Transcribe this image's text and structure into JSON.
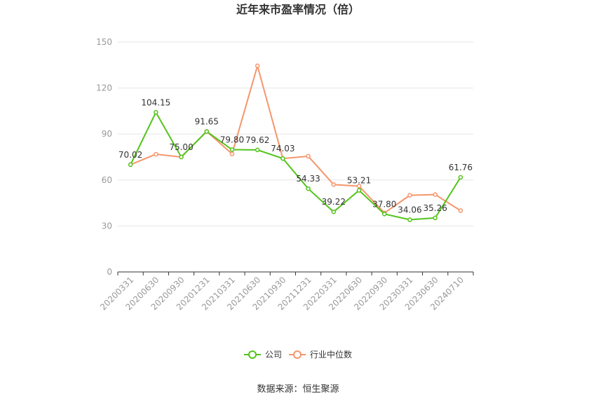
{
  "chart_data": {
    "type": "line",
    "title": "近年来市盈率情况（倍）",
    "categories": [
      "20200331",
      "20200630",
      "20200930",
      "20201231",
      "20210331",
      "20210630",
      "20210930",
      "20211231",
      "20220331",
      "20220630",
      "20220930",
      "20230331",
      "20230630",
      "20240710"
    ],
    "ylim": [
      0,
      150
    ],
    "yticks": [
      0,
      30,
      60,
      90,
      120,
      150
    ],
    "grid": true,
    "legend_position": "bottom",
    "series": [
      {
        "name": "公司",
        "color": "#52c41a",
        "values": [
          70.02,
          104.15,
          75.0,
          91.65,
          79.8,
          79.62,
          74.03,
          54.33,
          39.22,
          53.21,
          37.8,
          34.06,
          35.26,
          61.76
        ],
        "labels": [
          "70.02",
          "104.15",
          "75.00",
          "91.65",
          "79.80",
          "79.62",
          "74.03",
          "54.33",
          "39.22",
          "53.21",
          "37.80",
          "34.06",
          "35.26",
          "61.76"
        ]
      },
      {
        "name": "行业中位数",
        "color": "#f5956c",
        "values": [
          70.0,
          76.8,
          75.0,
          91.7,
          77.0,
          134.5,
          74.0,
          75.5,
          57.0,
          56.0,
          38.5,
          50.0,
          50.5,
          40.0
        ]
      }
    ]
  },
  "source": "数据来源：恒生聚源"
}
